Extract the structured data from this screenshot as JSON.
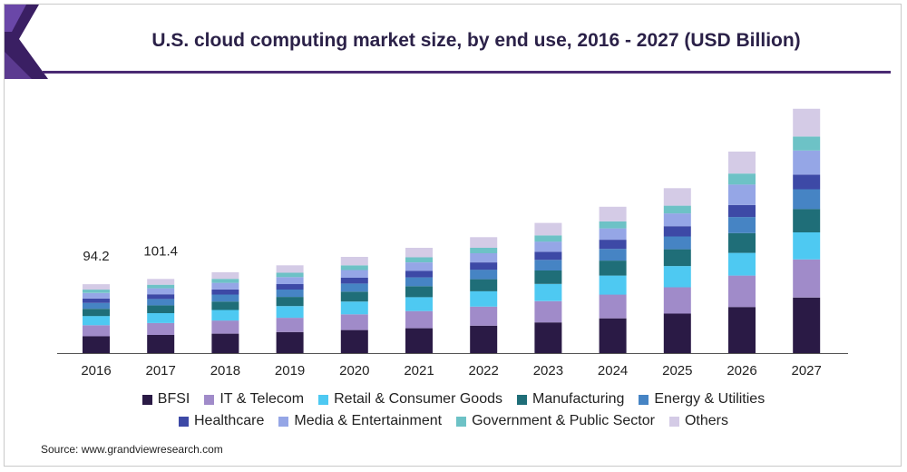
{
  "title": "U.S. cloud computing market size, by end use, 2016 - 2027 (USD Billion)",
  "source": "Source: www.grandviewresearch.com",
  "colors": {
    "BFSI": "#2a1a45",
    "IT & Telecom": "#a08bc9",
    "Retail & Consumer Goods": "#4ec9f2",
    "Manufacturing": "#1f6e78",
    "Energy & Utilities": "#4684c4",
    "Healthcare": "#3d49a6",
    "Media & Entertainment": "#95a6e6",
    "Government & Public Sector": "#6dc2c6",
    "Others": "#d4cbe6",
    "title_rule": "#4a2a73"
  },
  "chart_data": {
    "type": "bar",
    "stacked": true,
    "title": "U.S. cloud computing market size, by end use, 2016 - 2027 (USD Billion)",
    "xlabel": "",
    "ylabel": "",
    "ylim": [
      0,
      340
    ],
    "grid": false,
    "legend_position": "bottom",
    "categories": [
      "2016",
      "2017",
      "2018",
      "2019",
      "2020",
      "2021",
      "2022",
      "2023",
      "2024",
      "2025",
      "2026",
      "2027"
    ],
    "data_labels": [
      {
        "category": "2016",
        "text": "94.2"
      },
      {
        "category": "2017",
        "text": "101.4"
      }
    ],
    "series": [
      {
        "name": "BFSI",
        "values": [
          23.0,
          24.8,
          26.5,
          28.8,
          31.5,
          34.0,
          37.5,
          42.0,
          47.5,
          54.0,
          63.0,
          76.0
        ]
      },
      {
        "name": "IT & Telecom",
        "values": [
          15.1,
          16.3,
          18.0,
          19.5,
          21.5,
          23.5,
          26.0,
          29.0,
          32.5,
          36.0,
          43.0,
          52.0
        ]
      },
      {
        "name": "Retail & Consumer Goods",
        "values": [
          12.6,
          13.5,
          14.5,
          16.0,
          17.5,
          19.0,
          21.0,
          23.5,
          26.0,
          29.0,
          31.0,
          37.0
        ]
      },
      {
        "name": "Manufacturing",
        "values": [
          9.9,
          10.7,
          11.5,
          12.5,
          13.5,
          15.0,
          16.5,
          18.5,
          20.5,
          23.0,
          27.0,
          32.0
        ]
      },
      {
        "name": "Energy & Utilities",
        "values": [
          8.0,
          8.7,
          9.5,
          10.0,
          11.0,
          12.0,
          13.0,
          14.5,
          16.0,
          17.5,
          22.0,
          27.0
        ]
      },
      {
        "name": "Healthcare",
        "values": [
          6.0,
          6.4,
          7.0,
          7.5,
          8.0,
          9.0,
          10.0,
          11.0,
          12.5,
          14.0,
          16.5,
          20.0
        ]
      },
      {
        "name": "Media & Entertainment",
        "values": [
          7.6,
          8.2,
          9.0,
          9.5,
          10.5,
          11.5,
          12.5,
          14.0,
          15.5,
          17.5,
          28.0,
          33.0
        ]
      },
      {
        "name": "Government & Public Sector",
        "values": [
          4.6,
          4.9,
          5.5,
          6.0,
          6.5,
          7.0,
          7.5,
          8.5,
          9.5,
          10.5,
          15.0,
          19.0
        ]
      },
      {
        "name": "Others",
        "values": [
          7.4,
          7.9,
          9.0,
          10.2,
          11.5,
          13.0,
          14.5,
          17.0,
          20.0,
          24.0,
          30.0,
          38.0
        ]
      }
    ]
  },
  "legend": {
    "rows": [
      [
        "BFSI",
        "IT & Telecom",
        "Retail & Consumer Goods",
        "Manufacturing",
        "Energy & Utilities"
      ],
      [
        "Healthcare",
        "Media & Entertainment",
        "Government & Public Sector",
        "Others"
      ]
    ]
  }
}
